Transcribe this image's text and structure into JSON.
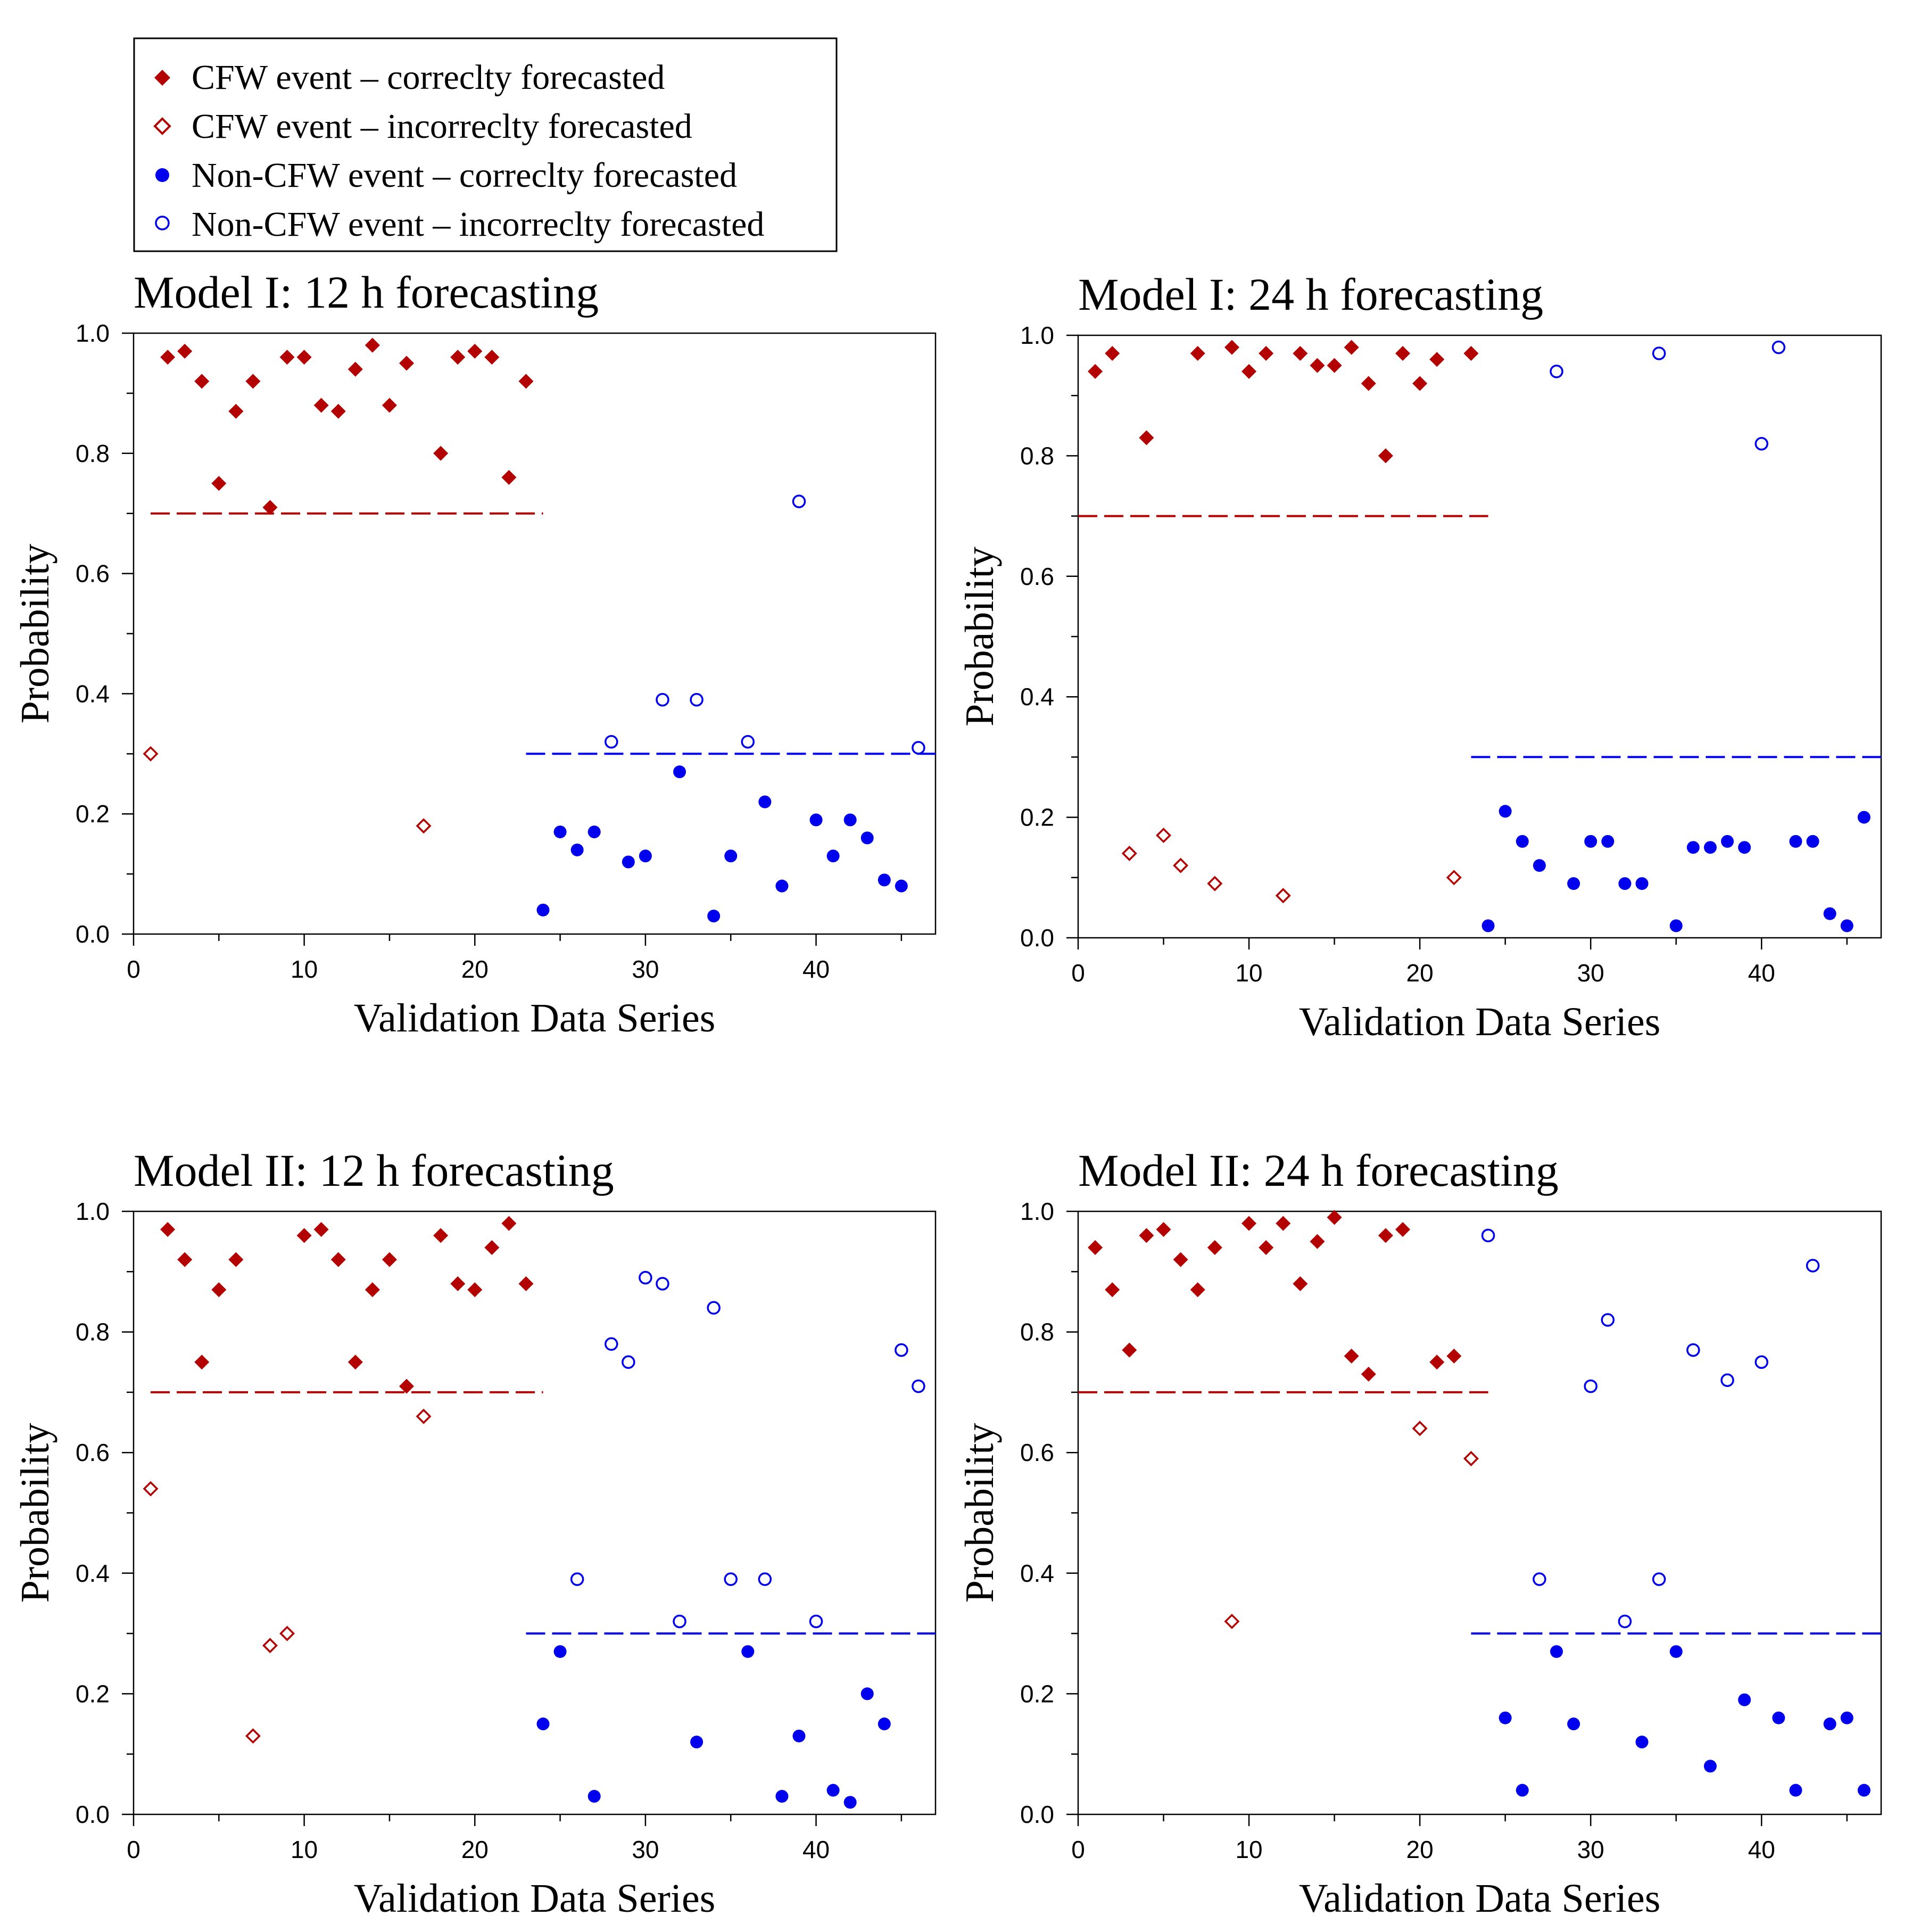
{
  "legend": {
    "items": [
      {
        "label": "CFW event – correclty forecasted",
        "marker": "diamond-filled",
        "color": "#b30000"
      },
      {
        "label": "CFW event – incorreclty forecasted",
        "marker": "diamond-open",
        "color": "#b30000"
      },
      {
        "label": "Non-CFW event – correclty forecasted",
        "marker": "circle-filled",
        "color": "#0000ee"
      },
      {
        "label": "Non-CFW event – incorreclty forecasted",
        "marker": "circle-open",
        "color": "#0000ee"
      }
    ]
  },
  "colors": {
    "cfw": "#b30000",
    "noncfw": "#0000ee"
  },
  "chart_data": [
    {
      "type": "scatter",
      "title": "Model I:  12 h forecasting",
      "xlabel": "Validation Data Series",
      "ylabel": "Probability",
      "xlim": [
        0,
        47
      ],
      "ylim": [
        0,
        1
      ],
      "xticks": [
        "0",
        "10",
        "20",
        "30",
        "40"
      ],
      "yticks": [
        "0.0",
        "0.2",
        "0.4",
        "0.6",
        "0.8",
        "1.0"
      ],
      "thresholds": [
        {
          "name": "CFW threshold",
          "y": 0.7,
          "x_range": [
            1,
            24
          ],
          "color": "#b30000"
        },
        {
          "name": "Non-CFW threshold",
          "y": 0.3,
          "x_range": [
            23,
            47
          ],
          "color": "#0000ee"
        }
      ],
      "series": [
        {
          "name": "CFW event – correclty forecasted",
          "x": [
            2,
            3,
            4,
            5,
            6,
            7,
            8,
            9,
            10,
            11,
            12,
            13,
            14,
            15,
            16,
            18,
            19,
            20,
            21,
            22,
            23
          ],
          "y": [
            0.96,
            0.97,
            0.92,
            0.75,
            0.87,
            0.92,
            0.71,
            0.96,
            0.96,
            0.88,
            0.87,
            0.94,
            0.98,
            0.88,
            0.95,
            0.8,
            0.96,
            0.97,
            0.96,
            0.76,
            0.92
          ]
        },
        {
          "name": "CFW event – incorreclty forecasted",
          "x": [
            1,
            17
          ],
          "y": [
            0.3,
            0.18
          ]
        },
        {
          "name": "Non-CFW event – correclty forecasted",
          "x": [
            24,
            25,
            26,
            27,
            29,
            30,
            32,
            34,
            35,
            37,
            38,
            40,
            41,
            42,
            43,
            44,
            45
          ],
          "y": [
            0.04,
            0.17,
            0.14,
            0.17,
            0.12,
            0.13,
            0.27,
            0.03,
            0.13,
            0.22,
            0.08,
            0.19,
            0.13,
            0.19,
            0.16,
            0.09,
            0.08
          ]
        },
        {
          "name": "Non-CFW event – incorreclty forecasted",
          "x": [
            28,
            31,
            33,
            36,
            39,
            46
          ],
          "y": [
            0.32,
            0.39,
            0.39,
            0.32,
            0.72,
            0.31
          ]
        }
      ]
    },
    {
      "type": "scatter",
      "title": "Model I:  24 h forecasting",
      "xlabel": "Validation Data Series",
      "ylabel": "Probability",
      "xlim": [
        0,
        47
      ],
      "ylim": [
        0,
        1
      ],
      "xticks": [
        "0",
        "10",
        "20",
        "30",
        "40"
      ],
      "yticks": [
        "0.0",
        "0.2",
        "0.4",
        "0.6",
        "0.8",
        "1.0"
      ],
      "thresholds": [
        {
          "name": "CFW threshold",
          "y": 0.7,
          "x_range": [
            0,
            24
          ],
          "color": "#b30000"
        },
        {
          "name": "Non-CFW threshold",
          "y": 0.3,
          "x_range": [
            23,
            47
          ],
          "color": "#0000ee"
        }
      ],
      "series": [
        {
          "name": "CFW event – correclty forecasted",
          "x": [
            1,
            2,
            4,
            7,
            9,
            10,
            11,
            13,
            14,
            15,
            16,
            17,
            18,
            19,
            20,
            21,
            23
          ],
          "y": [
            0.94,
            0.97,
            0.83,
            0.97,
            0.98,
            0.94,
            0.97,
            0.97,
            0.95,
            0.95,
            0.98,
            0.92,
            0.8,
            0.97,
            0.92,
            0.96,
            0.97
          ]
        },
        {
          "name": "CFW event – incorreclty forecasted",
          "x": [
            3,
            5,
            6,
            8,
            12,
            22
          ],
          "y": [
            0.14,
            0.17,
            0.12,
            0.09,
            0.07,
            0.1
          ]
        },
        {
          "name": "Non-CFW event – correclty forecasted",
          "x": [
            24,
            25,
            26,
            27,
            29,
            30,
            31,
            32,
            33,
            35,
            36,
            37,
            38,
            39,
            42,
            43,
            44,
            45,
            46
          ],
          "y": [
            0.02,
            0.21,
            0.16,
            0.12,
            0.09,
            0.16,
            0.16,
            0.09,
            0.09,
            0.02,
            0.15,
            0.15,
            0.16,
            0.15,
            0.16,
            0.16,
            0.04,
            0.02,
            0.2
          ]
        },
        {
          "name": "Non-CFW event – incorreclty forecasted",
          "x": [
            28,
            34,
            40,
            41
          ],
          "y": [
            0.94,
            0.97,
            0.82,
            0.98
          ]
        }
      ]
    },
    {
      "type": "scatter",
      "title": "Model II: 12 h forecasting",
      "xlabel": "Validation Data Series",
      "ylabel": "Probability",
      "xlim": [
        0,
        47
      ],
      "ylim": [
        0,
        1
      ],
      "xticks": [
        "0",
        "10",
        "20",
        "30",
        "40"
      ],
      "yticks": [
        "0.0",
        "0.2",
        "0.4",
        "0.6",
        "0.8",
        "1.0"
      ],
      "thresholds": [
        {
          "name": "CFW threshold",
          "y": 0.7,
          "x_range": [
            1,
            24
          ],
          "color": "#b30000"
        },
        {
          "name": "Non-CFW threshold",
          "y": 0.3,
          "x_range": [
            23,
            47
          ],
          "color": "#0000ee"
        }
      ],
      "series": [
        {
          "name": "CFW event – correclty forecasted",
          "x": [
            2,
            3,
            4,
            5,
            6,
            10,
            11,
            12,
            13,
            14,
            15,
            16,
            18,
            19,
            20,
            21,
            22,
            23
          ],
          "y": [
            0.97,
            0.92,
            0.75,
            0.87,
            0.92,
            0.96,
            0.97,
            0.92,
            0.75,
            0.87,
            0.92,
            0.71,
            0.96,
            0.88,
            0.87,
            0.94,
            0.98,
            0.88
          ]
        },
        {
          "name": "CFW event – incorreclty forecasted",
          "x": [
            1,
            7,
            8,
            9,
            17
          ],
          "y": [
            0.54,
            0.13,
            0.28,
            0.3,
            0.66
          ]
        },
        {
          "name": "Non-CFW event – correclty forecasted",
          "x": [
            24,
            25,
            27,
            33,
            36,
            38,
            39,
            41,
            42,
            43,
            44
          ],
          "y": [
            0.15,
            0.27,
            0.03,
            0.12,
            0.27,
            0.03,
            0.13,
            0.04,
            0.02,
            0.2,
            0.15
          ]
        },
        {
          "name": "Non-CFW event – incorreclty forecasted",
          "x": [
            26,
            28,
            29,
            30,
            31,
            32,
            34,
            35,
            37,
            40,
            45,
            46
          ],
          "y": [
            0.39,
            0.78,
            0.75,
            0.89,
            0.88,
            0.32,
            0.84,
            0.39,
            0.39,
            0.32,
            0.77,
            0.71
          ]
        }
      ]
    },
    {
      "type": "scatter",
      "title": "Model II: 24 h forecasting",
      "xlabel": "Validation Data Series",
      "ylabel": "Probability",
      "xlim": [
        0,
        47
      ],
      "ylim": [
        0,
        1
      ],
      "xticks": [
        "0",
        "10",
        "20",
        "30",
        "40"
      ],
      "yticks": [
        "0.0",
        "0.2",
        "0.4",
        "0.6",
        "0.8",
        "1.0"
      ],
      "thresholds": [
        {
          "name": "CFW threshold",
          "y": 0.7,
          "x_range": [
            0,
            24
          ],
          "color": "#b30000"
        },
        {
          "name": "Non-CFW threshold",
          "y": 0.3,
          "x_range": [
            23,
            47
          ],
          "color": "#0000ee"
        }
      ],
      "series": [
        {
          "name": "CFW event – correclty forecasted",
          "x": [
            1,
            2,
            3,
            4,
            5,
            6,
            7,
            8,
            10,
            11,
            12,
            13,
            14,
            15,
            16,
            17,
            18,
            19,
            21,
            22
          ],
          "y": [
            0.94,
            0.87,
            0.77,
            0.96,
            0.97,
            0.92,
            0.87,
            0.94,
            0.98,
            0.94,
            0.98,
            0.88,
            0.95,
            0.99,
            0.76,
            0.73,
            0.96,
            0.97,
            0.75,
            0.76
          ]
        },
        {
          "name": "CFW event – incorreclty forecasted",
          "x": [
            9,
            20,
            23
          ],
          "y": [
            0.32,
            0.64,
            0.59
          ]
        },
        {
          "name": "Non-CFW event – correclty forecasted",
          "x": [
            25,
            26,
            28,
            29,
            33,
            35,
            37,
            39,
            41,
            42,
            44,
            45,
            46
          ],
          "y": [
            0.16,
            0.04,
            0.27,
            0.15,
            0.12,
            0.27,
            0.08,
            0.19,
            0.16,
            0.04,
            0.15,
            0.16,
            0.04
          ]
        },
        {
          "name": "Non-CFW event – incorreclty forecasted",
          "x": [
            24,
            27,
            30,
            31,
            32,
            34,
            36,
            38,
            40,
            43
          ],
          "y": [
            0.96,
            0.39,
            0.71,
            0.82,
            0.32,
            0.39,
            0.77,
            0.72,
            0.75,
            0.91
          ]
        }
      ]
    }
  ]
}
